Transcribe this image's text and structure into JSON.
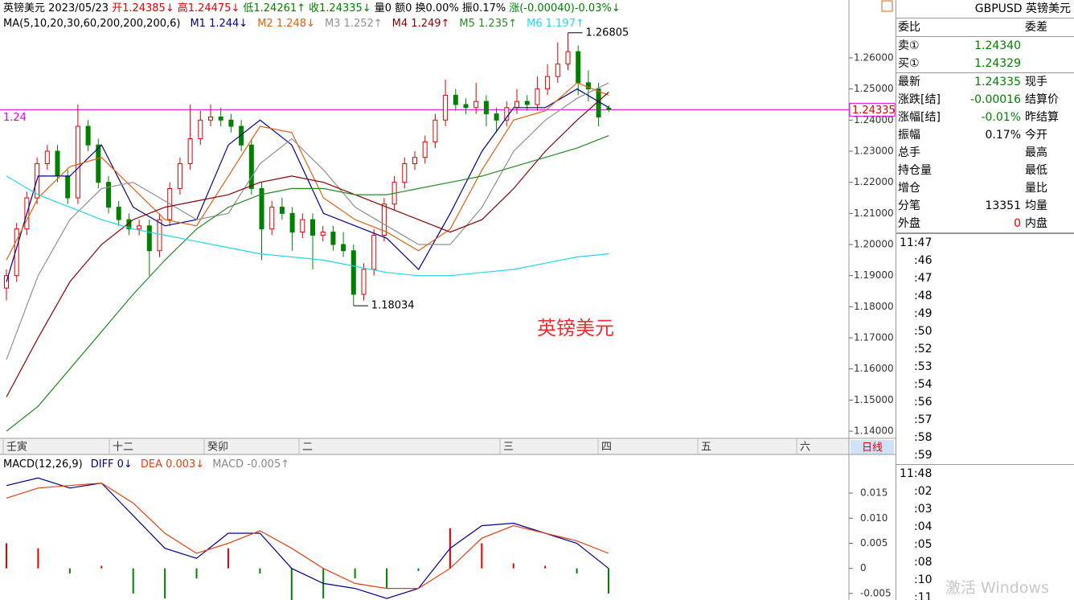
{
  "header": {
    "segments": [
      {
        "text": "英镑美元 2023/05/23",
        "color": "#000000"
      },
      {
        "text": "开1.24385↓",
        "color": "#e00000"
      },
      {
        "text": "高1.24475↓",
        "color": "#e00000"
      },
      {
        "text": "低1.24261↑",
        "color": "#008000"
      },
      {
        "text": "收1.24335↓",
        "color": "#008000"
      },
      {
        "text": "量0 额0 换0.00% 振0.17%",
        "color": "#000000"
      },
      {
        "text": "涨(-0.00040)-0.03%↓",
        "color": "#008000"
      }
    ]
  },
  "main_chart": {
    "type": "candlestick",
    "ma_title": "MA(5,10,20,30,60,200,200,200,6)",
    "ylim": [
      1.1377,
      1.2786
    ],
    "yticks": [
      {
        "value": 1.26,
        "label": "1.26000"
      },
      {
        "value": 1.25,
        "label": "1.25000"
      },
      {
        "value": 1.24,
        "label": "1.24000"
      },
      {
        "value": 1.23,
        "label": "1.23000"
      },
      {
        "value": 1.22,
        "label": "1.22000"
      },
      {
        "value": 1.21,
        "label": "1.21000"
      },
      {
        "value": 1.2,
        "label": "1.20000"
      },
      {
        "value": 1.19,
        "label": "1.19000"
      },
      {
        "value": 1.18,
        "label": "1.18000"
      },
      {
        "value": 1.17,
        "label": "1.17000"
      },
      {
        "value": 1.16,
        "label": "1.16000"
      },
      {
        "value": 1.15,
        "label": "1.15000"
      },
      {
        "value": 1.14,
        "label": "1.14000"
      }
    ],
    "up_color": "#e00000",
    "down_color": "#008000",
    "candles": [
      [
        1.186,
        1.192,
        1.182,
        1.19
      ],
      [
        1.19,
        1.207,
        1.188,
        1.205
      ],
      [
        1.205,
        1.217,
        1.203,
        1.215
      ],
      [
        1.215,
        1.228,
        1.213,
        1.226
      ],
      [
        1.226,
        1.232,
        1.224,
        1.23
      ],
      [
        1.23,
        1.232,
        1.22,
        1.222
      ],
      [
        1.222,
        1.224,
        1.213,
        1.215
      ],
      [
        1.215,
        1.245,
        1.213,
        1.238
      ],
      [
        1.238,
        1.24,
        1.23,
        1.232
      ],
      [
        1.232,
        1.234,
        1.218,
        1.22
      ],
      [
        1.22,
        1.222,
        1.21,
        1.212
      ],
      [
        1.212,
        1.214,
        1.206,
        1.208
      ],
      [
        1.208,
        1.21,
        1.203,
        1.205
      ],
      [
        1.205,
        1.208,
        1.203,
        1.206
      ],
      [
        1.206,
        1.208,
        1.19,
        1.198
      ],
      [
        1.198,
        1.21,
        1.196,
        1.208
      ],
      [
        1.208,
        1.22,
        1.206,
        1.218
      ],
      [
        1.218,
        1.228,
        1.216,
        1.226
      ],
      [
        1.226,
        1.245,
        1.224,
        1.234
      ],
      [
        1.234,
        1.243,
        1.232,
        1.24
      ],
      [
        1.24,
        1.245,
        1.238,
        1.241
      ],
      [
        1.241,
        1.244,
        1.238,
        1.24
      ],
      [
        1.24,
        1.242,
        1.236,
        1.238
      ],
      [
        1.238,
        1.24,
        1.23,
        1.232
      ],
      [
        1.232,
        1.234,
        1.216,
        1.218
      ],
      [
        1.218,
        1.22,
        1.195,
        1.205
      ],
      [
        1.205,
        1.214,
        1.203,
        1.212
      ],
      [
        1.212,
        1.215,
        1.208,
        1.21
      ],
      [
        1.21,
        1.212,
        1.198,
        1.204
      ],
      [
        1.204,
        1.21,
        1.202,
        1.208
      ],
      [
        1.208,
        1.21,
        1.192,
        1.203
      ],
      [
        1.203,
        1.206,
        1.201,
        1.204
      ],
      [
        1.204,
        1.206,
        1.198,
        1.2
      ],
      [
        1.2,
        1.204,
        1.196,
        1.198
      ],
      [
        1.198,
        1.2,
        1.18034,
        1.184
      ],
      [
        1.184,
        1.194,
        1.182,
        1.192
      ],
      [
        1.192,
        1.205,
        1.19,
        1.203
      ],
      [
        1.203,
        1.215,
        1.201,
        1.213
      ],
      [
        1.213,
        1.222,
        1.211,
        1.22
      ],
      [
        1.22,
        1.228,
        1.218,
        1.226
      ],
      [
        1.226,
        1.23,
        1.224,
        1.228
      ],
      [
        1.228,
        1.235,
        1.226,
        1.233
      ],
      [
        1.233,
        1.242,
        1.231,
        1.24
      ],
      [
        1.24,
        1.253,
        1.238,
        1.248
      ],
      [
        1.248,
        1.25,
        1.243,
        1.245
      ],
      [
        1.245,
        1.247,
        1.242,
        1.244
      ],
      [
        1.244,
        1.252,
        1.242,
        1.246
      ],
      [
        1.246,
        1.248,
        1.238,
        1.242
      ],
      [
        1.242,
        1.244,
        1.236,
        1.24
      ],
      [
        1.24,
        1.246,
        1.238,
        1.244
      ],
      [
        1.244,
        1.25,
        1.242,
        1.246
      ],
      [
        1.246,
        1.248,
        1.243,
        1.245
      ],
      [
        1.245,
        1.254,
        1.243,
        1.25
      ],
      [
        1.25,
        1.258,
        1.248,
        1.254
      ],
      [
        1.254,
        1.265,
        1.252,
        1.258
      ],
      [
        1.258,
        1.26805,
        1.256,
        1.262
      ],
      [
        1.262,
        1.264,
        1.248,
        1.252
      ],
      [
        1.252,
        1.256,
        1.246,
        1.25
      ],
      [
        1.25,
        1.252,
        1.238,
        1.241
      ],
      [
        1.24385,
        1.24475,
        1.24261,
        1.24335
      ]
    ],
    "series": [
      {
        "name": "M1 1.244↓",
        "color": "#00008b",
        "values": [
          1.188,
          1.222,
          1.222,
          1.232,
          1.212,
          1.206,
          1.208,
          1.232,
          1.24,
          1.232,
          1.21,
          1.206,
          1.202,
          1.192,
          1.21,
          1.23,
          1.244,
          1.244,
          1.25,
          1.244
        ]
      },
      {
        "name": "M2 1.248↓",
        "color": "#e06010",
        "values": [
          1.195,
          1.215,
          1.225,
          1.228,
          1.218,
          1.208,
          1.206,
          1.222,
          1.238,
          1.236,
          1.215,
          1.208,
          1.204,
          1.198,
          1.205,
          1.224,
          1.24,
          1.243,
          1.252,
          1.248
        ]
      },
      {
        "name": "M3 1.252↑",
        "color": "#909090",
        "values": [
          1.163,
          1.19,
          1.208,
          1.218,
          1.22,
          1.214,
          1.208,
          1.21,
          1.226,
          1.234,
          1.224,
          1.212,
          1.206,
          1.2,
          1.2,
          1.212,
          1.23,
          1.24,
          1.247,
          1.252
        ]
      },
      {
        "name": "M4 1.249↑",
        "color": "#8b0000",
        "values": [
          1.151,
          1.17,
          1.188,
          1.2,
          1.208,
          1.212,
          1.214,
          1.216,
          1.22,
          1.222,
          1.22,
          1.216,
          1.212,
          1.208,
          1.204,
          1.208,
          1.218,
          1.23,
          1.24,
          1.249
        ]
      },
      {
        "name": "M5 1.235↑",
        "color": "#228b22",
        "values": [
          1.14,
          1.148,
          1.16,
          1.172,
          1.184,
          1.195,
          1.205,
          1.212,
          1.216,
          1.218,
          1.218,
          1.216,
          1.216,
          1.218,
          1.22,
          1.222,
          1.225,
          1.228,
          1.231,
          1.235
        ]
      },
      {
        "name": "M6 1.197↑",
        "color": "#20d8e8",
        "values": [
          1.222,
          1.216,
          1.212,
          1.208,
          1.205,
          1.203,
          1.201,
          1.199,
          1.197,
          1.196,
          1.195,
          1.193,
          1.191,
          1.19,
          1.19,
          1.191,
          1.192,
          1.194,
          1.196,
          1.197
        ]
      }
    ],
    "price_line_color": "#e000e0",
    "price_line_left_label": "1.24",
    "x_labels": [
      "壬寅",
      "十二",
      "癸卯",
      "二",
      "三",
      "四",
      "五",
      "六"
    ],
    "watermark": "英镑美元",
    "period_button": "日线"
  },
  "macd_chart": {
    "type": "macd",
    "title": "MACD(12,26,9)",
    "ylim": [
      -0.0063,
      0.0227
    ],
    "yticks": [
      0.015,
      {
        "value": 0.01,
        "label": "0.010"
      },
      0.005,
      0,
      -0.005
    ],
    "series": [
      {
        "name": "DIFF 0↓",
        "color": "#00008b",
        "values": [
          0.0165,
          0.018,
          0.016,
          0.017,
          0.0105,
          0.004,
          0.002,
          0.007,
          0.007,
          0.0,
          -0.003,
          -0.004,
          -0.006,
          -0.004,
          0.004,
          0.0085,
          0.009,
          0.007,
          0.005,
          0.0
        ]
      },
      {
        "name": "DEA 0.003↓",
        "color": "#e04010",
        "values": [
          0.014,
          0.016,
          0.0165,
          0.017,
          0.013,
          0.007,
          0.003,
          0.005,
          0.0075,
          0.004,
          0.0,
          -0.003,
          -0.004,
          -0.004,
          0.0,
          0.006,
          0.0085,
          0.007,
          0.0055,
          0.003
        ]
      }
    ],
    "histogram": {
      "name": "MACD -0.005↑",
      "up_color": "#e00000",
      "down_color": "#008000",
      "values": [
        0.005,
        0.004,
        -0.001,
        0.0005,
        -0.005,
        -0.006,
        -0.002,
        0.004,
        -0.001,
        -0.008,
        -0.006,
        -0.002,
        -0.004,
        -0.0005,
        0.008,
        0.005,
        0.001,
        0.0005,
        -0.001,
        -0.005
      ]
    }
  },
  "quote": {
    "title": "GBPUSD 英镑美元",
    "rows": [
      {
        "label": "委比",
        "value": "",
        "label2": "委差",
        "color": "#000000"
      },
      {
        "label": "卖①",
        "value": "1.24340",
        "label2": "",
        "color": "#008000"
      },
      {
        "label": "买①",
        "value": "1.24329",
        "label2": "",
        "color": "#008000"
      },
      {
        "label": "最新",
        "value": "1.24335",
        "label2": "现手",
        "color": "#008000"
      },
      {
        "label": "涨跌[结]",
        "value": "-0.00016",
        "label2": "结算价",
        "color": "#008000"
      },
      {
        "label": "涨幅[结]",
        "value": "-0.01%",
        "label2": "昨结算",
        "color": "#008000"
      },
      {
        "label": "振幅",
        "value": "0.17%",
        "label2": "今开",
        "color": "#000000"
      },
      {
        "label": "总手",
        "value": "",
        "label2": "最高",
        "color": "#000000"
      },
      {
        "label": "持仓量",
        "value": "",
        "label2": "最低",
        "color": "#000000"
      },
      {
        "label": "增仓",
        "value": "",
        "label2": "量比",
        "color": "#000000"
      },
      {
        "label": "分笔",
        "value": "13351",
        "label2": "均量",
        "color": "#000000"
      },
      {
        "label": "外盘",
        "value": "0",
        "label2": "内盘",
        "color": "#e00000"
      }
    ],
    "times": [
      "11:47",
      ":46",
      ":47",
      ":48",
      ":49",
      ":50",
      ":52",
      ":53",
      ":54",
      ":56",
      ":57",
      ":58",
      ":59",
      "11:48",
      ":02",
      ":03",
      ":04",
      ":05",
      ":08",
      ":10",
      ":11"
    ]
  },
  "os_watermark": "激活 Windows"
}
